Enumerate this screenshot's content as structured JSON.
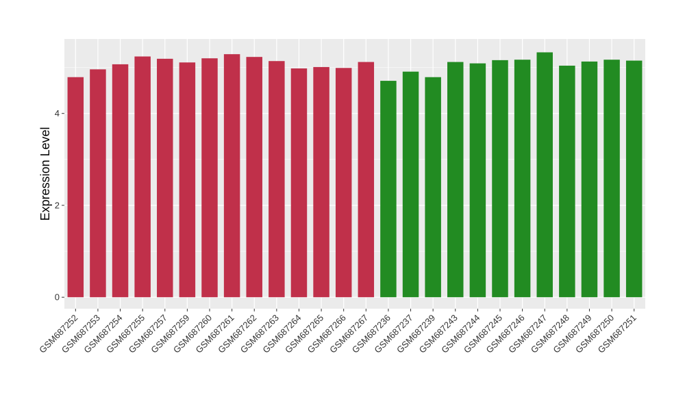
{
  "chart_data": {
    "type": "bar",
    "title": "",
    "xlabel": "",
    "ylabel": "Expression Level",
    "ylim": [
      -0.25,
      5.62
    ],
    "yticks": [
      0,
      2,
      4
    ],
    "grid": true,
    "legend": "none",
    "categories": [
      "GSM687252",
      "GSM687253",
      "GSM687254",
      "GSM687255",
      "GSM687257",
      "GSM687259",
      "GSM687260",
      "GSM687261",
      "GSM687262",
      "GSM687263",
      "GSM687264",
      "GSM687265",
      "GSM687266",
      "GSM687267",
      "GSM687236",
      "GSM687237",
      "GSM687239",
      "GSM687243",
      "GSM687244",
      "GSM687245",
      "GSM687246",
      "GSM687247",
      "GSM687248",
      "GSM687249",
      "GSM687250",
      "GSM687251"
    ],
    "values": [
      4.79,
      4.96,
      5.07,
      5.24,
      5.19,
      5.11,
      5.2,
      5.29,
      5.23,
      5.14,
      4.98,
      5.01,
      4.99,
      5.12,
      4.71,
      4.91,
      4.79,
      5.12,
      5.09,
      5.16,
      5.17,
      5.33,
      5.04,
      5.13,
      5.17,
      5.15
    ],
    "colors": [
      "#c0304a",
      "#c0304a",
      "#c0304a",
      "#c0304a",
      "#c0304a",
      "#c0304a",
      "#c0304a",
      "#c0304a",
      "#c0304a",
      "#c0304a",
      "#c0304a",
      "#c0304a",
      "#c0304a",
      "#c0304a",
      "#228b22",
      "#228b22",
      "#228b22",
      "#228b22",
      "#228b22",
      "#228b22",
      "#228b22",
      "#228b22",
      "#228b22",
      "#228b22",
      "#228b22",
      "#228b22"
    ],
    "panel_background": "#ebebeb",
    "grid_color": "#ffffff"
  }
}
